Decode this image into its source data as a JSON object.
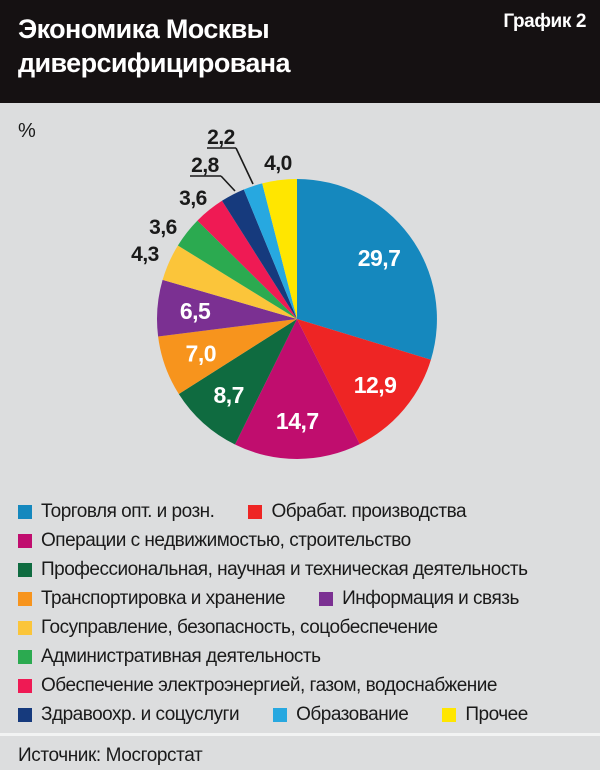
{
  "header": {
    "title_line1": "Экономика Москвы",
    "title_line2": "диверсифицирована",
    "badge": "График 2"
  },
  "chart_data": {
    "type": "pie",
    "title": "Экономика Москвы диверсифицирована",
    "unit_label": "%",
    "start_angle_deg": 0,
    "direction": "clockwise",
    "slices": [
      {
        "label": "Торговля опт. и розн.",
        "value": 29.7,
        "color": "#1588BE"
      },
      {
        "label": "Обрабат. производства",
        "value": 12.9,
        "color": "#EE2524"
      },
      {
        "label": "Операции с недвижимостью, строительство",
        "value": 14.7,
        "color": "#C00D6E"
      },
      {
        "label": "Профессиональная, научная и техническая деятельность",
        "value": 8.7,
        "color": "#0F6B40"
      },
      {
        "label": "Транспортировка и хранение",
        "value": 7.0,
        "color": "#F7941D"
      },
      {
        "label": "Информация и связь",
        "value": 6.5,
        "color": "#7B3092"
      },
      {
        "label": "Госуправление, безопасность, соцобеспечение",
        "value": 4.3,
        "color": "#FBC53A"
      },
      {
        "label": "Административная деятельность",
        "value": 3.6,
        "color": "#2BAA50"
      },
      {
        "label": "Обеспечение электроэнергией, газом, водоснабжение",
        "value": 3.6,
        "color": "#EF1A54"
      },
      {
        "label": "Здравоохр. и соцуслуги",
        "value": 2.8,
        "color": "#163A7D"
      },
      {
        "label": "Образование",
        "value": 2.2,
        "color": "#27A8E0"
      },
      {
        "label": "Прочее",
        "value": 4.0,
        "color": "#FFE600"
      }
    ],
    "legend_rows": [
      [
        0,
        1
      ],
      [
        2
      ],
      [
        3
      ],
      [
        4,
        5
      ],
      [
        6
      ],
      [
        7
      ],
      [
        8
      ],
      [
        9,
        10,
        11
      ]
    ]
  },
  "footer": {
    "source": "Источник: Мосгорстат"
  },
  "colors": {
    "background": "#DCDDDE",
    "header_bg": "#151112",
    "text": "#1A1A1A",
    "label_inside": "#FFFFFF"
  }
}
